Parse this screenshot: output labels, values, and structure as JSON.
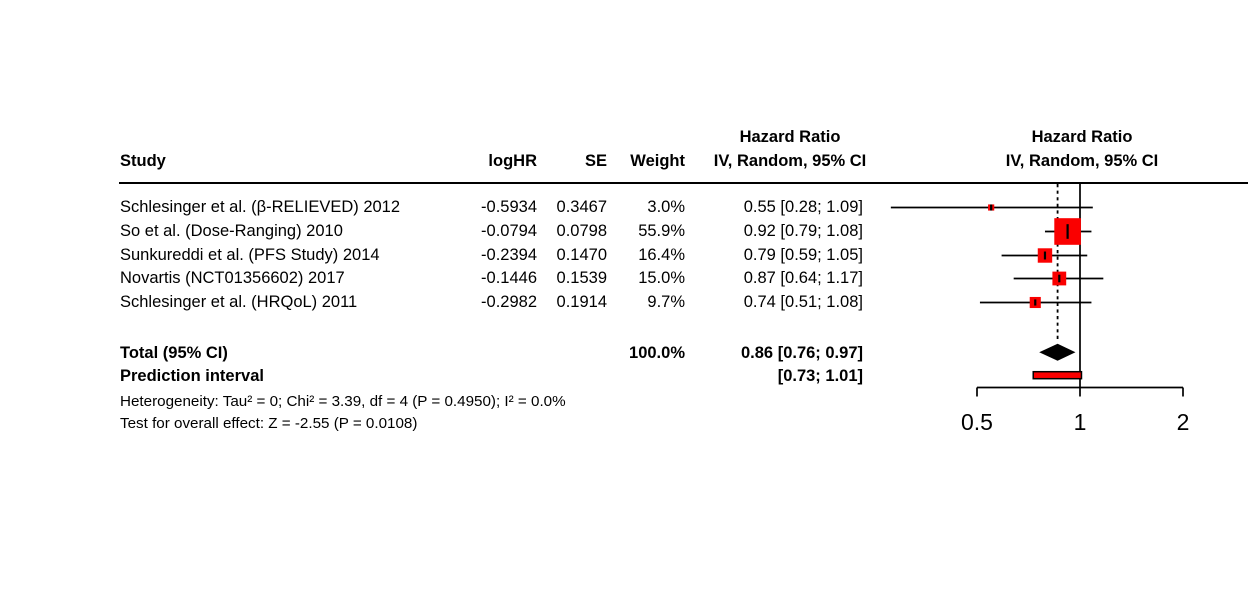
{
  "header": {
    "study": "Study",
    "loghr": "logHR",
    "se": "SE",
    "weight": "Weight",
    "hr_text": {
      "line1": "Hazard Ratio",
      "line2": "IV, Random, 95% CI"
    },
    "hr_plot": {
      "line1": "Hazard Ratio",
      "line2": "IV, Random, 95% CI"
    }
  },
  "rows": [
    {
      "study": "Schlesinger et al. (β-RELIEVED) 2012",
      "loghr": "-0.5934",
      "se": "0.3467",
      "weight": "3.0%",
      "ci": "0.55 [0.28; 1.09]"
    },
    {
      "study": "So et al. (Dose-Ranging) 2010",
      "loghr": "-0.0794",
      "se": "0.0798",
      "weight": "55.9%",
      "ci": "0.92 [0.79; 1.08]"
    },
    {
      "study": "Sunkureddi et al. (PFS Study) 2014",
      "loghr": "-0.2394",
      "se": "0.1470",
      "weight": "16.4%",
      "ci": "0.79 [0.59; 1.05]"
    },
    {
      "study": "Novartis (NCT01356602) 2017",
      "loghr": "-0.1446",
      "se": "0.1539",
      "weight": "15.0%",
      "ci": "0.87 [0.64; 1.17]"
    },
    {
      "study": "Schlesinger et al. (HRQoL) 2011",
      "loghr": "-0.2982",
      "se": "0.1914",
      "weight": "9.7%",
      "ci": "0.74 [0.51; 1.08]"
    }
  ],
  "totals": {
    "total_label": "Total (95% CI)",
    "total_weight": "100.0%",
    "total_ci": "0.86 [0.76; 0.97]",
    "prediction_label": "Prediction interval",
    "prediction_ci": "[0.73; 1.01]",
    "heterogeneity": "Heterogeneity: Tau² = 0; Chi² = 3.39, df = 4 (P = 0.4950); I² = 0.0%",
    "overall_effect": "Test for overall effect: Z = -2.55 (P = 0.0108)"
  },
  "chart_data": {
    "type": "forest",
    "effect_measure": "Hazard Ratio",
    "model": "IV, Random, 95% CI",
    "x_scale": "log",
    "axis_ticks": [
      0.5,
      1,
      2
    ],
    "xlim": [
      0.5,
      2
    ],
    "ref_line": 1,
    "studies": [
      {
        "name": "Schlesinger et al. (β-RELIEVED) 2012",
        "hr": 0.55,
        "lo": 0.28,
        "hi": 1.09,
        "weight": 3.0
      },
      {
        "name": "So et al. (Dose-Ranging) 2010",
        "hr": 0.92,
        "lo": 0.79,
        "hi": 1.08,
        "weight": 55.9
      },
      {
        "name": "Sunkureddi et al. (PFS Study) 2014",
        "hr": 0.79,
        "lo": 0.59,
        "hi": 1.05,
        "weight": 16.4
      },
      {
        "name": "Novartis (NCT01356602) 2017",
        "hr": 0.87,
        "lo": 0.64,
        "hi": 1.17,
        "weight": 15.0
      },
      {
        "name": "Schlesinger et al. (HRQoL) 2011",
        "hr": 0.74,
        "lo": 0.51,
        "hi": 1.08,
        "weight": 9.7
      }
    ],
    "pooled": {
      "hr": 0.86,
      "lo": 0.76,
      "hi": 0.97
    },
    "prediction": {
      "lo": 0.73,
      "hi": 1.01
    },
    "colors": {
      "square": "#fa0000",
      "diamond": "#000000",
      "prediction_fill": "#fa0000",
      "prediction_stroke": "#000000",
      "lines": "#000000"
    }
  }
}
